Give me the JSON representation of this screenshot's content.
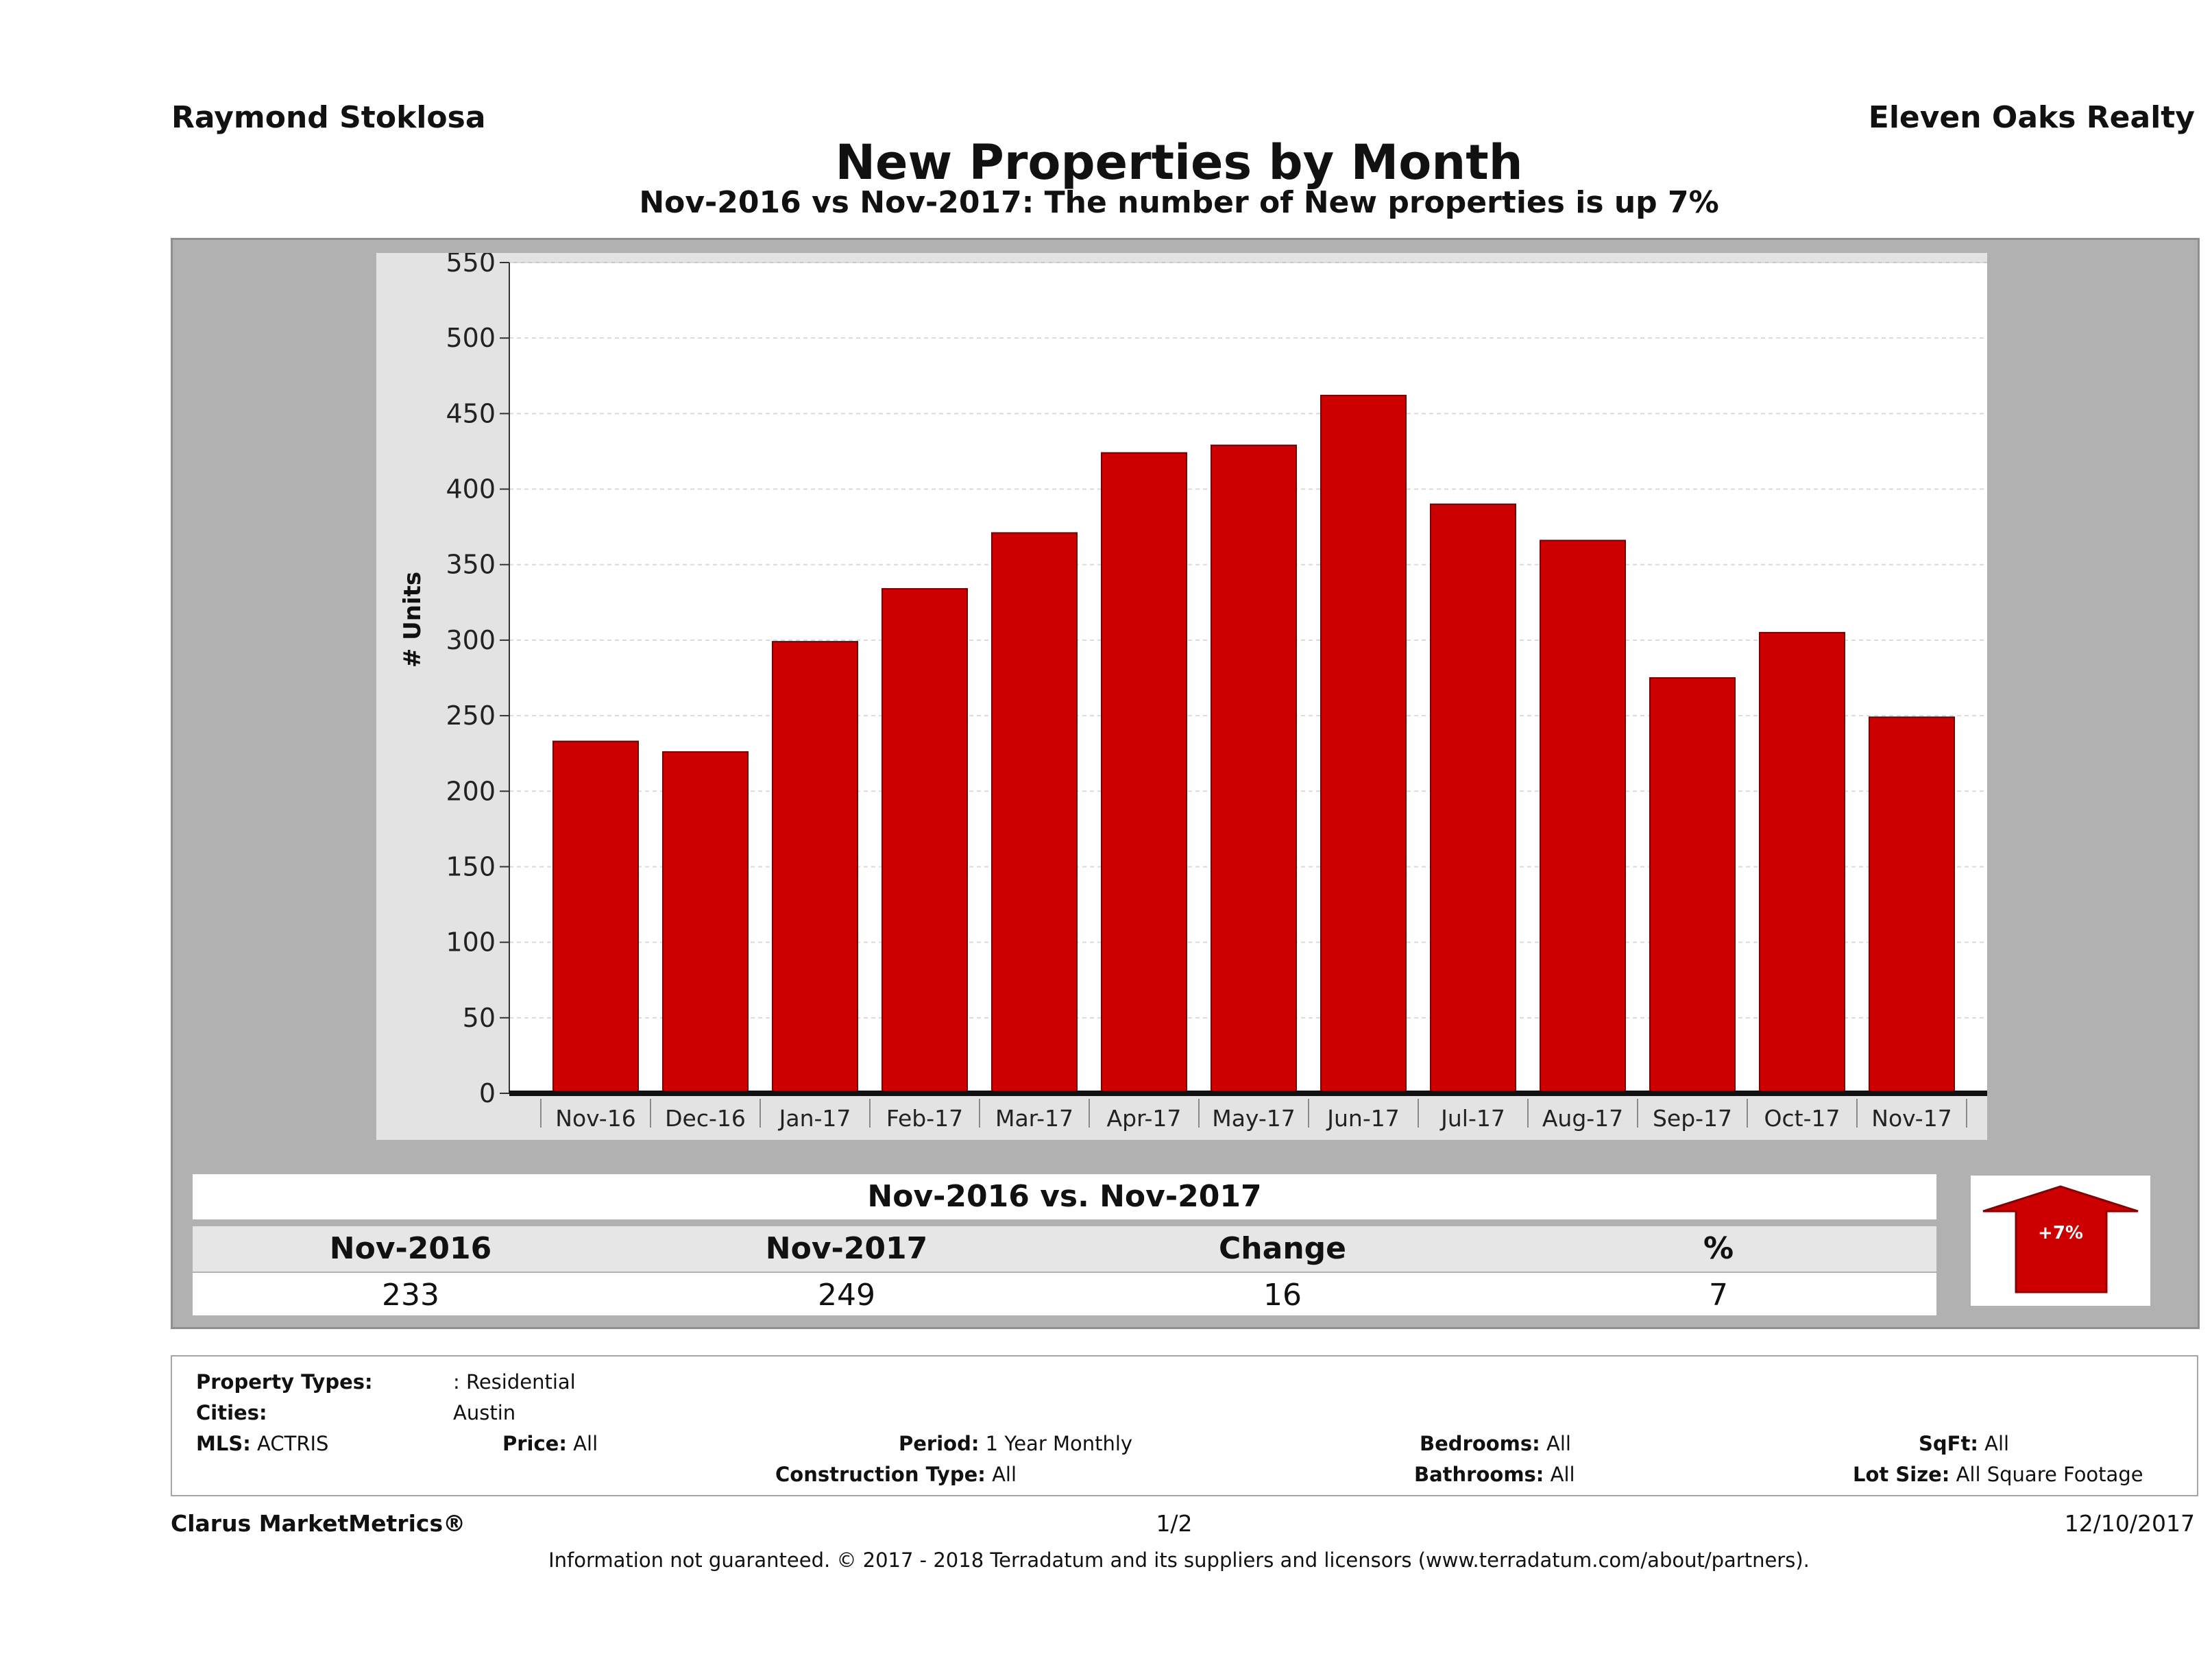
{
  "header": {
    "agent_name": "Raymond Stoklosa",
    "brokerage": "Eleven Oaks Realty",
    "title": "New Properties by Month",
    "subtitle": "Nov-2016 vs Nov-2017: The number of New  properties is up 7%"
  },
  "chart_data": {
    "type": "bar",
    "categories": [
      "Nov-16",
      "Dec-16",
      "Jan-17",
      "Feb-17",
      "Mar-17",
      "Apr-17",
      "May-17",
      "Jun-17",
      "Jul-17",
      "Aug-17",
      "Sep-17",
      "Oct-17",
      "Nov-17"
    ],
    "values": [
      233,
      226,
      299,
      334,
      371,
      424,
      429,
      462,
      390,
      366,
      275,
      305,
      249
    ],
    "ylabel": "# Units",
    "xlabel": "",
    "ylim": [
      0,
      550
    ],
    "yticks": [
      0,
      50,
      100,
      150,
      200,
      250,
      300,
      350,
      400,
      450,
      500,
      550
    ],
    "bar_color": "#cc0000",
    "grid": true
  },
  "summary": {
    "title": "Nov-2016 vs. Nov-2017",
    "headers": [
      "Nov-2016",
      "Nov-2017",
      "Change",
      "%"
    ],
    "values": [
      "233",
      "249",
      "16",
      "7"
    ],
    "badge": "+7%",
    "badge_color": "#cc0000"
  },
  "filters": {
    "property_types_label": "Property Types:",
    "property_types_value": ": Residential",
    "cities_label": "Cities:",
    "cities_value": "Austin",
    "mls_label": "MLS:",
    "mls_value": "ACTRIS",
    "price_label": "Price:",
    "price_value": "All",
    "period_label": "Period:",
    "period_value": "1 Year Monthly",
    "construction_label": "Construction Type:",
    "construction_value": "All",
    "bedrooms_label": "Bedrooms:",
    "bedrooms_value": "All",
    "bathrooms_label": "Bathrooms:",
    "bathrooms_value": "All",
    "sqft_label": "SqFt:",
    "sqft_value": "All",
    "lot_label": "Lot Size:",
    "lot_value": "All Square Footage"
  },
  "footer": {
    "product": "Clarus MarketMetrics®",
    "page": "1/2",
    "date": "12/10/2017",
    "disclaimer": "Information not guaranteed. © 2017 - 2018 Terradatum and its suppliers and licensors (www.terradatum.com/about/partners)."
  }
}
